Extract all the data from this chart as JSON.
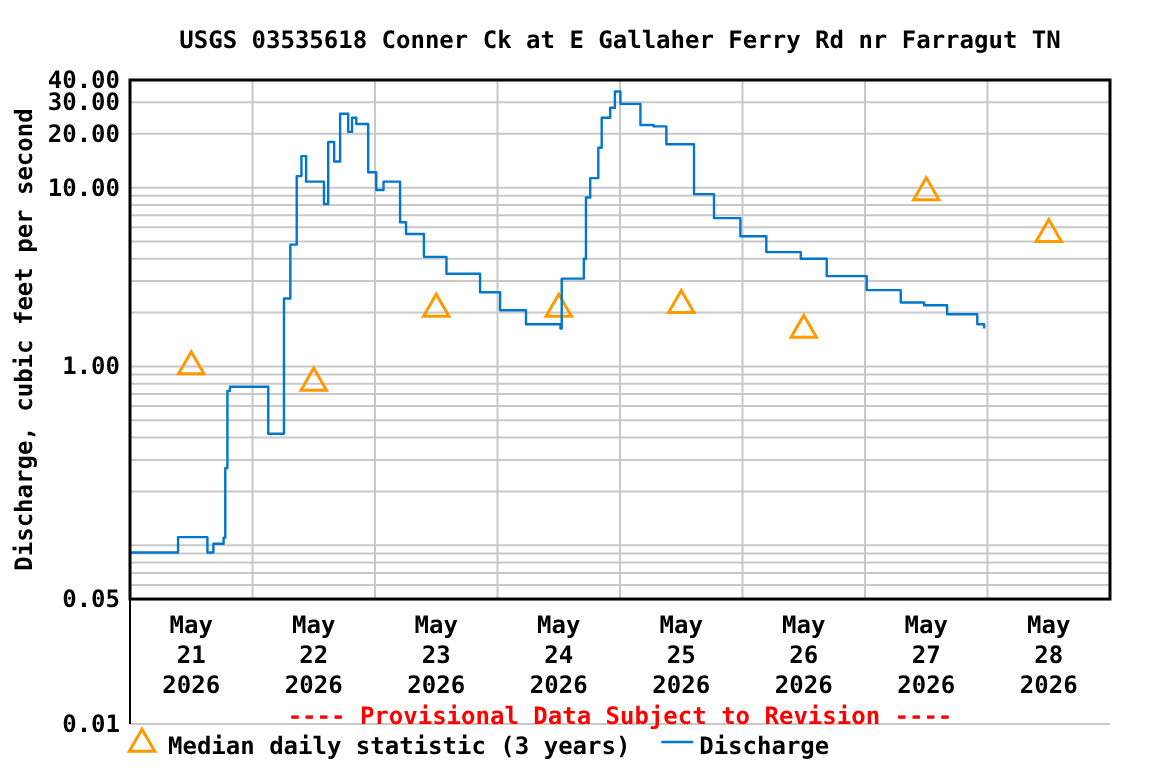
{
  "chart_data": {
    "type": "step",
    "title": "USGS 03535618 Conner Ck at E Gallaher Ferry Rd nr Farragut TN",
    "ylabel": "Discharge, cubic feet per second",
    "log": true,
    "grid": true,
    "legend": "bottom",
    "annotations": [
      "---- Provisional Data Subject to Revision ----"
    ],
    "xlim": [
      "2026-05-21T00:00",
      "2026-05-29T00:00"
    ],
    "xticks": [
      {
        "value": "2026-05-21T12:00",
        "label": "May\n21\n2026"
      },
      {
        "value": "2026-05-22T12:00",
        "label": "May\n22\n2026"
      },
      {
        "value": "2026-05-23T12:00",
        "label": "May\n23\n2026"
      },
      {
        "value": "2026-05-24T12:00",
        "label": "May\n24\n2026"
      },
      {
        "value": "2026-05-25T12:00",
        "label": "May\n25\n2026"
      },
      {
        "value": "2026-05-26T12:00",
        "label": "May\n26\n2026"
      },
      {
        "value": "2026-05-27T12:00",
        "label": "May\n27\n2026"
      },
      {
        "value": "2026-05-28T12:00",
        "label": "May\n28\n2026"
      },
      {
        "value": "2026-05-22T00:00",
        "label": null
      },
      {
        "value": "2026-05-23T00:00",
        "label": null
      },
      {
        "value": "2026-05-24T00:00",
        "label": null
      },
      {
        "value": "2026-05-25T00:00",
        "label": null
      },
      {
        "value": "2026-05-26T00:00",
        "label": null
      },
      {
        "value": "2026-05-27T00:00",
        "label": null
      },
      {
        "value": "2026-05-28T00:00",
        "label": null
      }
    ],
    "ylim": [
      0.01,
      40
    ],
    "yticks": [
      {
        "value": 0.01,
        "label": "0.01"
      },
      {
        "value": 0.05,
        "label": "0.05"
      },
      {
        "value": 1,
        "label": "1.00"
      },
      {
        "value": 10,
        "label": "10.00"
      },
      {
        "value": 20,
        "label": "20.00"
      },
      {
        "value": 30,
        "label": "30.00"
      },
      {
        "value": 40,
        "label": "40.00"
      },
      {
        "value": 0.06,
        "label": null
      },
      {
        "value": 0.07,
        "label": null
      },
      {
        "value": 0.08,
        "label": null
      },
      {
        "value": 0.09,
        "label": null
      },
      {
        "value": 0.1,
        "label": null
      },
      {
        "value": 0.2,
        "label": null
      },
      {
        "value": 0.3,
        "label": null
      },
      {
        "value": 0.4,
        "label": null
      },
      {
        "value": 0.5,
        "label": null
      },
      {
        "value": 0.6,
        "label": null
      },
      {
        "value": 0.7,
        "label": null
      },
      {
        "value": 0.8,
        "label": null
      },
      {
        "value": 0.9,
        "label": null
      },
      {
        "value": 2,
        "label": null
      },
      {
        "value": 3,
        "label": null
      },
      {
        "value": 4,
        "label": null
      },
      {
        "value": 5,
        "label": null
      },
      {
        "value": 6,
        "label": null
      },
      {
        "value": 7,
        "label": null
      },
      {
        "value": 8,
        "label": null
      },
      {
        "value": 9,
        "label": null
      }
    ],
    "series": [
      {
        "name": "Median daily statistic (3 years)",
        "type": "scatter",
        "marker": "triangle",
        "color": "#ff9900",
        "x": [
          "2026-05-21T12:00",
          "2026-05-22T12:00",
          "2026-05-23T12:00",
          "2026-05-24T12:00",
          "2026-05-25T12:00",
          "2026-05-26T12:00",
          "2026-05-27T12:00",
          "2026-05-28T12:00"
        ],
        "values": [
          1.0,
          0.81,
          2.1,
          2.1,
          2.2,
          1.6,
          9.4,
          5.5
        ]
      },
      {
        "name": "Discharge",
        "marker": "none",
        "color": "#0077cc",
        "x": [
          "2026-05-21T00:00",
          "2026-05-21T09:25",
          "2026-05-21T15:10",
          "2026-05-21T16:20",
          "2026-05-21T18:20",
          "2026-05-21T18:40",
          "2026-05-21T19:05",
          "2026-05-21T19:35",
          "2026-05-22T03:05",
          "2026-05-22T06:05",
          "2026-05-22T06:10",
          "2026-05-22T07:25",
          "2026-05-22T08:40",
          "2026-05-22T09:35",
          "2026-05-22T10:30",
          "2026-05-22T14:00",
          "2026-05-22T14:50",
          "2026-05-22T16:00",
          "2026-05-22T17:10",
          "2026-05-22T18:45",
          "2026-05-22T19:30",
          "2026-05-22T20:20",
          "2026-05-22T22:40",
          "2026-05-23T00:15",
          "2026-05-23T01:40",
          "2026-05-23T04:55",
          "2026-05-23T06:05",
          "2026-05-23T09:35",
          "2026-05-23T14:00",
          "2026-05-23T20:35",
          "2026-05-24T00:30",
          "2026-05-24T05:35",
          "2026-05-24T12:20",
          "2026-05-24T12:35",
          "2026-05-24T16:55",
          "2026-05-24T17:20",
          "2026-05-24T18:10",
          "2026-05-24T19:45",
          "2026-05-24T20:25",
          "2026-05-24T22:05",
          "2026-05-24T23:00",
          "2026-05-25T00:05",
          "2026-05-25T04:00",
          "2026-05-25T06:35",
          "2026-05-25T09:05",
          "2026-05-25T14:30",
          "2026-05-25T18:25",
          "2026-05-25T23:35",
          "2026-05-26T04:40",
          "2026-05-26T11:25",
          "2026-05-26T16:30",
          "2026-05-27T00:20",
          "2026-05-27T07:00",
          "2026-05-27T11:35",
          "2026-05-27T16:05",
          "2026-05-27T22:00",
          "2026-05-27T23:20"
        ],
        "values": [
          0.091,
          0.111,
          0.091,
          0.102,
          0.11,
          0.27,
          0.73,
          0.77,
          0.42,
          0.42,
          2.4,
          4.8,
          11.6,
          15,
          10.8,
          8.1,
          18,
          14,
          25.9,
          20.5,
          24.6,
          22.7,
          12.2,
          9.7,
          10.8,
          6.4,
          5.5,
          4.1,
          3.3,
          2.6,
          2.06,
          1.72,
          1.63,
          3.1,
          4.0,
          8.8,
          11.3,
          16.7,
          24.6,
          28,
          34.5,
          29.4,
          22.4,
          22,
          17.5,
          9.2,
          6.75,
          5.35,
          4.36,
          4.0,
          3.2,
          2.67,
          2.28,
          2.2,
          1.96,
          1.72,
          1.63
        ]
      }
    ]
  }
}
